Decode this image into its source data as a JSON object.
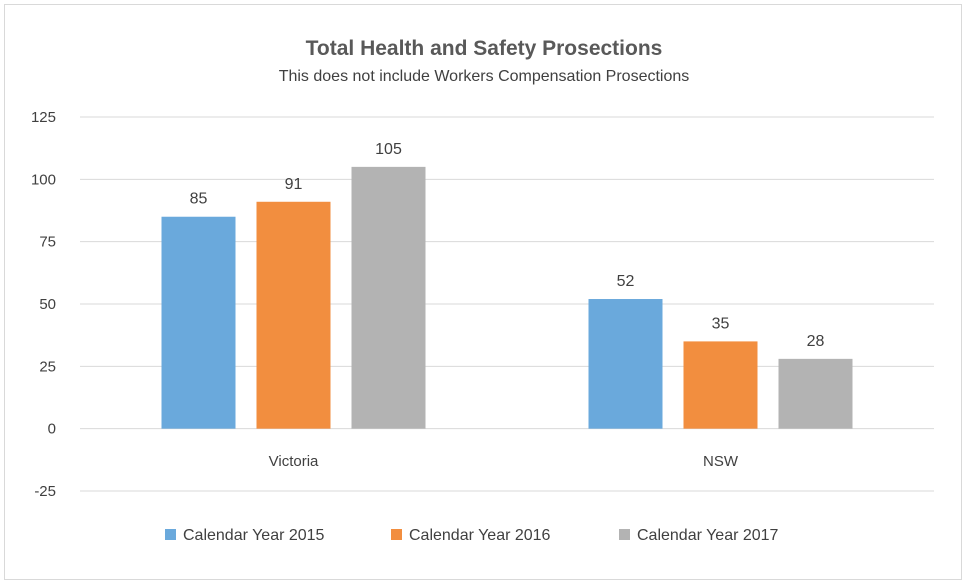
{
  "chart_data": {
    "type": "bar",
    "title": "Total Health and Safety Prosections",
    "subtitle": "This does not include Workers Compensation  Prosections",
    "categories": [
      "Victoria",
      "NSW"
    ],
    "series": [
      {
        "name": "Calendar Year 2015",
        "values": [
          85,
          52
        ],
        "color": "#6aa9dc"
      },
      {
        "name": "Calendar Year 2016",
        "values": [
          91,
          35
        ],
        "color": "#f28e3f"
      },
      {
        "name": "Calendar Year 2017",
        "values": [
          105,
          28
        ],
        "color": "#b3b3b3"
      }
    ],
    "ylim": [
      -25,
      125
    ],
    "yticks": [
      "125",
      "100",
      "75",
      "50",
      "25",
      "0",
      "-25"
    ],
    "ytick_values": [
      125,
      100,
      75,
      50,
      25,
      0,
      -25
    ],
    "grid": true,
    "legend": "bottom"
  }
}
